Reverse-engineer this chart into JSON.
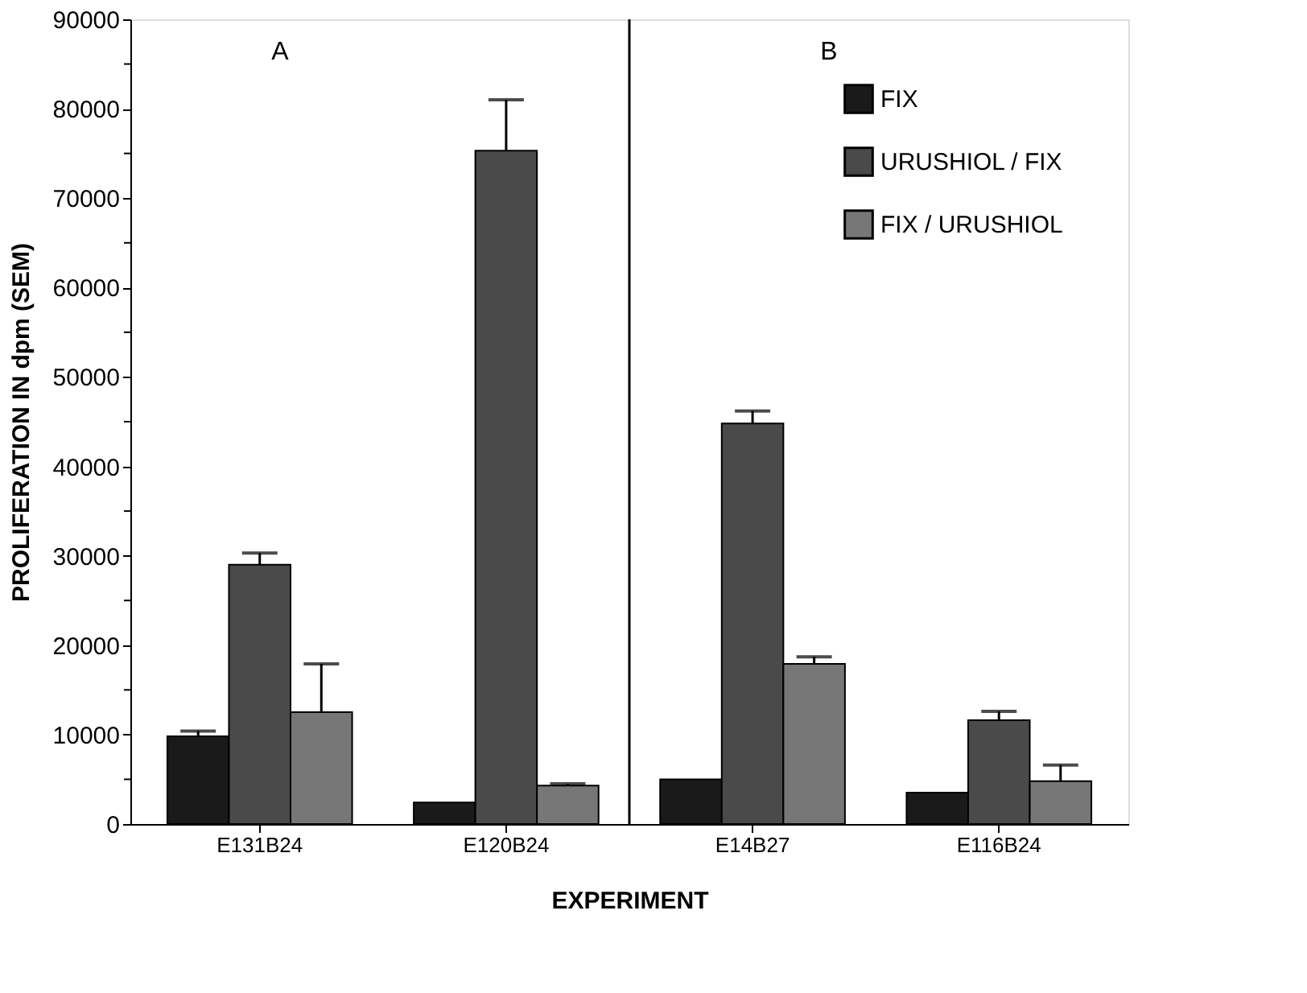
{
  "chart_data": {
    "type": "bar",
    "xlabel": "EXPERIMENT",
    "ylabel": "PROLIFERATION IN dpm (SEM)",
    "categories": [
      "E131B24",
      "E120B24",
      "E14B27",
      "E116B24"
    ],
    "series": [
      {
        "name": "FIX",
        "color": "#1a1a1a",
        "values": [
          9800,
          2400,
          5000,
          3500
        ],
        "errors": [
          [
            9800,
            10400
          ],
          null,
          null,
          null
        ]
      },
      {
        "name": "URUSHIOL / FIX",
        "color": "#4a4a4a",
        "values": [
          29000,
          75300,
          44800,
          11600
        ],
        "errors": [
          [
            29000,
            30300
          ],
          [
            75300,
            81000
          ],
          [
            44800,
            46200
          ],
          [
            11600,
            12600
          ]
        ]
      },
      {
        "name": "FIX / URUSHIOL",
        "color": "#777777",
        "values": [
          12500,
          4300,
          17900,
          4800
        ],
        "errors": [
          [
            12500,
            17900
          ],
          [
            4300,
            4500
          ],
          [
            17900,
            18700
          ],
          [
            4800,
            6600
          ]
        ]
      }
    ],
    "ylim": [
      0,
      90000
    ],
    "yticks": [
      0,
      {
        "value": 5000,
        "label": null
      },
      10000,
      {
        "value": 15000,
        "label": null
      },
      20000,
      {
        "value": 25000,
        "label": null
      },
      30000,
      {
        "value": 35000,
        "label": null
      },
      40000,
      {
        "value": 45000,
        "label": null
      },
      50000,
      {
        "value": 55000,
        "label": null
      },
      60000,
      {
        "value": 65000,
        "label": null
      },
      70000,
      {
        "value": 75000,
        "label": null
      },
      80000,
      {
        "value": 85000,
        "label": null
      },
      90000
    ],
    "annotations": [
      "A",
      "B"
    ],
    "legend": "top right",
    "grid": false
  }
}
